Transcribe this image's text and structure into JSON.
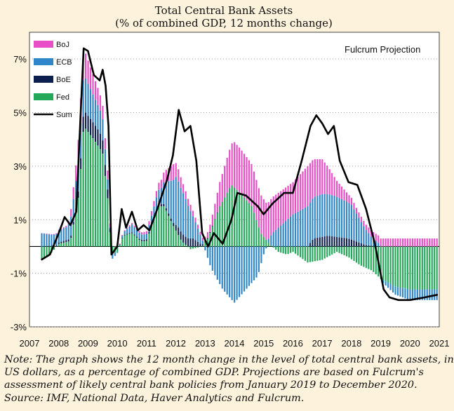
{
  "chart_data": {
    "type": "bar",
    "title": "Total Central Bank Assets",
    "subtitle": "(% of combined GDP, 12 months change)",
    "annotation": "Fulcrum  Projection",
    "xlabel": "",
    "ylabel": "",
    "ylim": [
      -3,
      8
    ],
    "y_ticks": [
      7,
      5,
      3,
      1,
      -1,
      -3
    ],
    "y_tick_labels": [
      "7%",
      "5%",
      "3%",
      "1%",
      "-1%",
      "-3%"
    ],
    "x_ticks": [
      2007,
      2008,
      2009,
      2010,
      2011,
      2012,
      2013,
      2014,
      2015,
      2016,
      2017,
      2018,
      2019,
      2020,
      2021
    ],
    "x_tick_labels": [
      "2007",
      "2008",
      "2009",
      "2010",
      "2011",
      "2012",
      "2013",
      "2014",
      "2015",
      "2016",
      "2017",
      "2018",
      "2019",
      "2020",
      "2021"
    ],
    "grid": "horizontal dotted",
    "legend_position": "top-left",
    "stacked": true,
    "period": "monthly, 2007-06 to 2020-12",
    "series": [
      {
        "name": "BoJ",
        "color": "#e84fc6",
        "anchors": [
          [
            2007.4,
            0
          ],
          [
            2008.3,
            0.05
          ],
          [
            2008.8,
            1.0
          ],
          [
            2009.4,
            0.6
          ],
          [
            2009.7,
            0.3
          ],
          [
            2009.8,
            0
          ],
          [
            2010.5,
            0.05
          ],
          [
            2011.0,
            0.1
          ],
          [
            2011.5,
            0.3
          ],
          [
            2011.9,
            0.6
          ],
          [
            2012.3,
            0.3
          ],
          [
            2012.6,
            0.2
          ],
          [
            2012.9,
            0.1
          ],
          [
            2013.2,
            0.3
          ],
          [
            2013.5,
            0.9
          ],
          [
            2014.0,
            1.7
          ],
          [
            2014.5,
            1.6
          ],
          [
            2015.0,
            1.4
          ],
          [
            2015.5,
            1.3
          ],
          [
            2016.0,
            1.2
          ],
          [
            2016.5,
            1.5
          ],
          [
            2017.0,
            1.3
          ],
          [
            2017.5,
            0.6
          ],
          [
            2017.9,
            0.3
          ],
          [
            2018.2,
            0.2
          ],
          [
            2018.5,
            0.2
          ],
          [
            2019.0,
            0.3
          ],
          [
            2020.95,
            0.3
          ]
        ]
      },
      {
        "name": "ECB",
        "color": "#2f86c8",
        "anchors": [
          [
            2007.4,
            0.5
          ],
          [
            2007.8,
            0.4
          ],
          [
            2008.3,
            0.5
          ],
          [
            2008.8,
            1.4
          ],
          [
            2009.2,
            1.0
          ],
          [
            2009.5,
            0.8
          ],
          [
            2009.7,
            0.3
          ],
          [
            2009.8,
            -0.2
          ],
          [
            2010.2,
            0.1
          ],
          [
            2010.5,
            0.3
          ],
          [
            2010.8,
            0.2
          ],
          [
            2011.0,
            0.2
          ],
          [
            2011.5,
            0.6
          ],
          [
            2012.0,
            1.8
          ],
          [
            2012.3,
            1.5
          ],
          [
            2012.6,
            0.8
          ],
          [
            2012.9,
            0.2
          ],
          [
            2013.2,
            -0.8
          ],
          [
            2013.6,
            -1.6
          ],
          [
            2014.0,
            -2.1
          ],
          [
            2014.4,
            -1.6
          ],
          [
            2014.8,
            -1.1
          ],
          [
            2015.0,
            -0.3
          ],
          [
            2015.3,
            0.5
          ],
          [
            2015.7,
            0.9
          ],
          [
            2016.0,
            1.2
          ],
          [
            2016.5,
            1.5
          ],
          [
            2017.0,
            1.6
          ],
          [
            2017.5,
            1.5
          ],
          [
            2018.0,
            1.3
          ],
          [
            2018.4,
            0.7
          ],
          [
            2018.7,
            0.3
          ],
          [
            2018.95,
            0.1
          ],
          [
            2019.05,
            -0.1
          ],
          [
            2019.5,
            -0.3
          ],
          [
            2020.0,
            -0.4
          ],
          [
            2020.95,
            -0.4
          ]
        ]
      },
      {
        "name": "BoE",
        "color": "#0d1f4e",
        "anchors": [
          [
            2007.4,
            0
          ],
          [
            2008.6,
            0.1
          ],
          [
            2008.85,
            0.6
          ],
          [
            2009.4,
            0.6
          ],
          [
            2009.7,
            0.3
          ],
          [
            2009.8,
            0
          ],
          [
            2011.9,
            0.1
          ],
          [
            2012.1,
            0.3
          ],
          [
            2012.6,
            0.3
          ],
          [
            2012.9,
            0.05
          ],
          [
            2013.5,
            0
          ],
          [
            2016.5,
            0
          ],
          [
            2016.7,
            0.3
          ],
          [
            2017.2,
            0.4
          ],
          [
            2017.9,
            0.3
          ],
          [
            2018.5,
            0.05
          ],
          [
            2019.0,
            0
          ],
          [
            2020.95,
            0
          ]
        ]
      },
      {
        "name": "Fed",
        "color": "#23a85a",
        "anchors": [
          [
            2007.4,
            -0.5
          ],
          [
            2007.7,
            -0.3
          ],
          [
            2008.0,
            0.1
          ],
          [
            2008.4,
            0.2
          ],
          [
            2008.7,
            2.0
          ],
          [
            2008.85,
            4.5
          ],
          [
            2009.2,
            4.0
          ],
          [
            2009.5,
            3.5
          ],
          [
            2009.7,
            1.5
          ],
          [
            2009.8,
            -0.3
          ],
          [
            2010.0,
            -0.2
          ],
          [
            2010.2,
            0.4
          ],
          [
            2010.5,
            0.5
          ],
          [
            2010.8,
            0.2
          ],
          [
            2011.0,
            0.2
          ],
          [
            2011.4,
            1.5
          ],
          [
            2011.6,
            1.5
          ],
          [
            2011.9,
            0.8
          ],
          [
            2012.2,
            0.2
          ],
          [
            2012.5,
            -0.1
          ],
          [
            2012.9,
            0
          ],
          [
            2013.1,
            0.3
          ],
          [
            2013.5,
            1.5
          ],
          [
            2013.9,
            2.3
          ],
          [
            2014.2,
            2.0
          ],
          [
            2014.6,
            1.5
          ],
          [
            2014.9,
            0.5
          ],
          [
            2015.2,
            0.1
          ],
          [
            2015.5,
            -0.2
          ],
          [
            2015.8,
            -0.3
          ],
          [
            2016.0,
            -0.2
          ],
          [
            2016.5,
            -0.6
          ],
          [
            2017.0,
            -0.5
          ],
          [
            2017.5,
            -0.2
          ],
          [
            2017.9,
            -0.4
          ],
          [
            2018.3,
            -0.7
          ],
          [
            2018.7,
            -0.9
          ],
          [
            2019.0,
            -1.2
          ],
          [
            2019.5,
            -1.5
          ],
          [
            2020.0,
            -1.6
          ],
          [
            2020.95,
            -1.6
          ]
        ]
      }
    ],
    "sum_line": {
      "name": "Sum",
      "color": "#000000",
      "anchors": [
        [
          2007.4,
          -0.5
        ],
        [
          2007.7,
          -0.3
        ],
        [
          2008.0,
          0.5
        ],
        [
          2008.2,
          1.1
        ],
        [
          2008.4,
          0.8
        ],
        [
          2008.6,
          1.3
        ],
        [
          2008.75,
          5.0
        ],
        [
          2008.85,
          7.4
        ],
        [
          2009.0,
          7.3
        ],
        [
          2009.2,
          6.4
        ],
        [
          2009.4,
          6.2
        ],
        [
          2009.5,
          6.6
        ],
        [
          2009.6,
          6.0
        ],
        [
          2009.7,
          4.5
        ],
        [
          2009.8,
          -0.3
        ],
        [
          2010.0,
          0
        ],
        [
          2010.15,
          1.4
        ],
        [
          2010.3,
          0.7
        ],
        [
          2010.5,
          1.3
        ],
        [
          2010.7,
          0.6
        ],
        [
          2010.9,
          0.8
        ],
        [
          2011.1,
          0.6
        ],
        [
          2011.4,
          1.5
        ],
        [
          2011.7,
          2.5
        ],
        [
          2011.9,
          3.4
        ],
        [
          2012.1,
          5.1
        ],
        [
          2012.3,
          4.3
        ],
        [
          2012.5,
          4.5
        ],
        [
          2012.7,
          3.2
        ],
        [
          2012.9,
          0.5
        ],
        [
          2013.1,
          0
        ],
        [
          2013.3,
          0.5
        ],
        [
          2013.6,
          0.1
        ],
        [
          2013.9,
          1.0
        ],
        [
          2014.1,
          2.0
        ],
        [
          2014.4,
          1.9
        ],
        [
          2014.8,
          1.5
        ],
        [
          2015.0,
          1.2
        ],
        [
          2015.3,
          1.6
        ],
        [
          2015.7,
          2.0
        ],
        [
          2016.0,
          2.0
        ],
        [
          2016.3,
          3.2
        ],
        [
          2016.6,
          4.5
        ],
        [
          2016.8,
          4.9
        ],
        [
          2017.0,
          4.6
        ],
        [
          2017.2,
          4.2
        ],
        [
          2017.4,
          4.5
        ],
        [
          2017.6,
          3.2
        ],
        [
          2017.9,
          2.4
        ],
        [
          2018.2,
          2.3
        ],
        [
          2018.5,
          1.4
        ],
        [
          2018.8,
          0.1
        ],
        [
          2019.1,
          -1.6
        ],
        [
          2019.3,
          -1.9
        ],
        [
          2019.6,
          -2.0
        ],
        [
          2020.0,
          -2.0
        ],
        [
          2020.5,
          -1.9
        ],
        [
          2020.95,
          -1.8
        ]
      ]
    }
  },
  "note_lines": [
    "Note: The graph shows the 12 month change in the level of total central bank assets, in",
    "US dollars, as a percentage of combined GDP.  Projections are based on Fulcrum's",
    "assessment of likely  central bank policies from January  2019 to December 2020.",
    "Source: IMF, National Data, Haver Analytics and Fulcrum."
  ]
}
